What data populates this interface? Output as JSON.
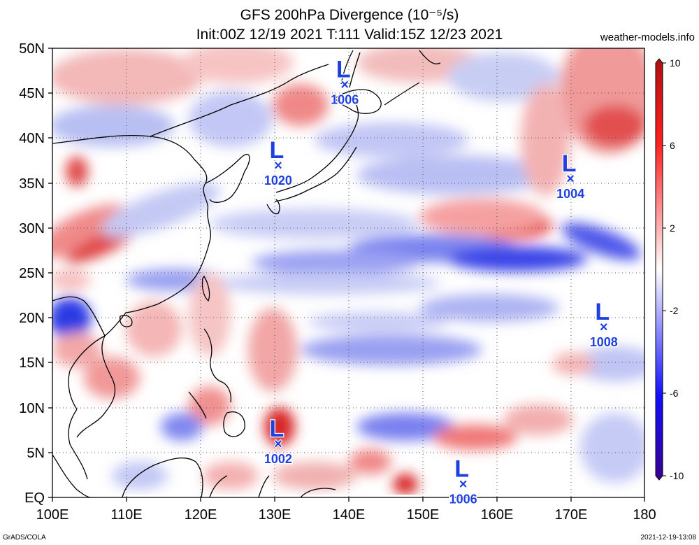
{
  "header": {
    "title_line1": "GFS 200hPa Divergence (10⁻⁵/s)",
    "title_line2": "Init:00Z 12/19 2021 T:111 Valid:15Z 12/23 2021",
    "credit": "weather-models.info"
  },
  "footer": {
    "left": "GrADS/COLA",
    "right": "2021-12-19-13:08"
  },
  "map": {
    "lon_range": [
      100,
      180
    ],
    "lat_range": [
      0,
      50
    ],
    "lat_labels": [
      "50N",
      "45N",
      "40N",
      "35N",
      "30N",
      "25N",
      "20N",
      "15N",
      "10N",
      "5N",
      "EQ"
    ],
    "lon_labels": [
      "100E",
      "110E",
      "120E",
      "130E",
      "140E",
      "150E",
      "160E",
      "170E",
      "180"
    ],
    "grid": true
  },
  "colorbar": {
    "labels": [
      "10",
      "6",
      "2",
      "-2",
      "-6",
      "-10"
    ],
    "values": [
      10,
      6,
      2,
      -2,
      -6,
      -10
    ],
    "colors": {
      "max": "#b01010",
      "strong_pos": "#ff2020",
      "pos": "#ff9090",
      "neutral": "#ffffff",
      "neg": "#9090ff",
      "strong_neg": "#1010ff",
      "min": "#3a0090"
    }
  },
  "lows": [
    {
      "marker": "L",
      "symbol": "×",
      "pressure": "1006",
      "lon": 139.5,
      "lat": 46
    },
    {
      "marker": "L",
      "symbol": "×",
      "pressure": "1020",
      "lon": 130.5,
      "lat": 37
    },
    {
      "marker": "L",
      "symbol": "×",
      "pressure": "1004",
      "lon": 170,
      "lat": 35.5
    },
    {
      "marker": "L",
      "symbol": "×",
      "pressure": "1008",
      "lon": 174.5,
      "lat": 19
    },
    {
      "marker": "L",
      "symbol": "×",
      "pressure": "1002",
      "lon": 130.5,
      "lat": 6
    },
    {
      "marker": "L",
      "symbol": "×",
      "pressure": "1006",
      "lon": 155.5,
      "lat": 1.5
    }
  ]
}
